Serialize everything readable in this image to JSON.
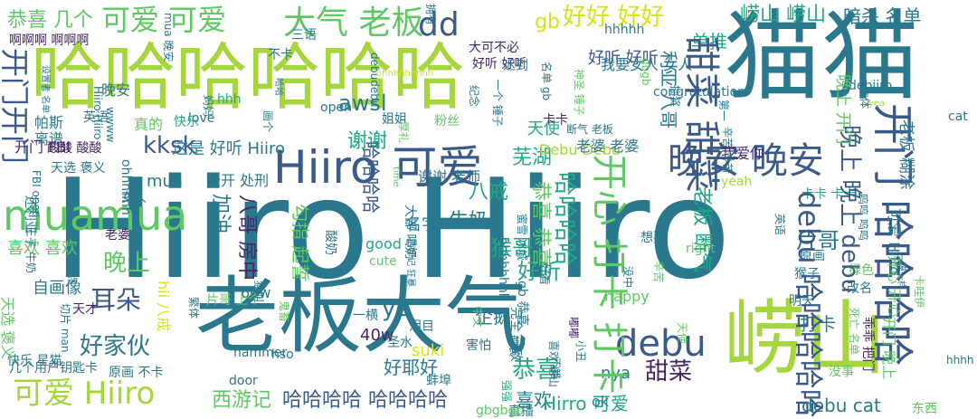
{
  "palette": {
    "dark_purple": "#46256b",
    "blue": "#3b5a8c",
    "teal": "#2a788e",
    "green_teal": "#22a884",
    "green": "#5ec962",
    "lime": "#a5d63b",
    "yellow": "#d8e219"
  },
  "words": [
    {
      "text": "Hiiro Hiiro",
      "color": "teal",
      "orient": "h"
    },
    {
      "text": "猫猫",
      "color": "teal",
      "orient": "h"
    },
    {
      "text": "哈哈哈哈哈哈",
      "color": "lime",
      "orient": "h"
    },
    {
      "text": "老板大气",
      "color": "teal",
      "orient": "h"
    },
    {
      "text": "崂山",
      "color": "lime",
      "orient": "h"
    },
    {
      "text": "Hiiro 可爱",
      "color": "blue",
      "orient": "h"
    },
    {
      "text": "大气 老板",
      "color": "green",
      "orient": "h"
    },
    {
      "text": "可爱 可爱",
      "color": "green",
      "orient": "h"
    },
    {
      "text": "dd",
      "color": "blue",
      "orient": "h"
    },
    {
      "text": "好好 好好",
      "color": "yellow",
      "orient": "h"
    },
    {
      "text": "恭喜 几个",
      "color": "green",
      "orient": "h"
    },
    {
      "text": "晚安 晚安",
      "color": "blue",
      "orient": "h"
    },
    {
      "text": "可爱 Hiiro",
      "color": "lime",
      "orient": "h"
    },
    {
      "text": "哈哈哈哈 哈哈哈哈",
      "color": "blue",
      "orient": "h"
    },
    {
      "text": "debu",
      "color": "blue",
      "orient": "h"
    },
    {
      "text": "好家伙",
      "color": "teal",
      "orient": "h"
    },
    {
      "text": "恭喜",
      "color": "green_teal",
      "orient": "h"
    },
    {
      "text": "崂山 崂山",
      "color": "green_teal",
      "orient": "h"
    },
    {
      "text": "暗杀 名单",
      "color": "teal",
      "orient": "h"
    },
    {
      "text": "单推",
      "color": "green_teal",
      "orient": "h"
    },
    {
      "text": "awsl",
      "color": "teal",
      "orient": "h"
    },
    {
      "text": "gb",
      "color": "yellow",
      "orient": "h"
    },
    {
      "text": "kksk",
      "color": "blue",
      "orient": "h"
    },
    {
      "text": "谢谢",
      "color": "green_teal",
      "orient": "h"
    },
    {
      "text": "芜湖",
      "color": "green_teal",
      "orient": "h"
    },
    {
      "text": "天使",
      "color": "green_teal",
      "orient": "h"
    },
    {
      "text": "好听 好听",
      "color": "blue",
      "orient": "h"
    },
    {
      "text": "mua",
      "color": "teal",
      "orient": "h"
    },
    {
      "text": "晚上",
      "color": "green",
      "orient": "h"
    },
    {
      "text": "耳朵",
      "color": "blue",
      "orient": "h"
    },
    {
      "text": "ye",
      "color": "teal",
      "orient": "h"
    },
    {
      "text": "企鹅",
      "color": "teal",
      "orient": "h"
    },
    {
      "text": "好听",
      "color": "green_teal",
      "orient": "h"
    },
    {
      "text": "猴哥",
      "color": "green_teal",
      "orient": "h"
    },
    {
      "text": "牛奶",
      "color": "teal",
      "orient": "h"
    },
    {
      "text": "甜菜",
      "color": "dark_purple",
      "orient": "h"
    },
    {
      "text": "喜欢",
      "color": "teal",
      "orient": "h"
    },
    {
      "text": "Hirro 可爱",
      "color": "green_teal",
      "orient": "h"
    },
    {
      "text": "西游记",
      "color": "green",
      "orient": "h"
    },
    {
      "text": "debu cat",
      "color": "teal",
      "orient": "h"
    },
    {
      "text": "片哥",
      "color": "teal",
      "orient": "h"
    },
    {
      "text": "打卡",
      "color": "teal",
      "orient": "h"
    },
    {
      "text": "好耶好",
      "color": "teal",
      "orient": "h"
    },
    {
      "text": "八戒",
      "color": "green_teal",
      "orient": "h"
    },
    {
      "text": "名字",
      "color": "teal",
      "orient": "h"
    },
    {
      "text": "这是 好听 Hiiro",
      "color": "teal",
      "orient": "h"
    },
    {
      "text": "我爱你",
      "color": "dark_purple",
      "orient": "h"
    },
    {
      "text": "公开 处刑",
      "color": "teal",
      "orient": "h"
    },
    {
      "text": "谢谢 老师",
      "color": "teal",
      "orient": "h"
    },
    {
      "text": "Debu Debu",
      "color": "lime",
      "orient": "h"
    },
    {
      "text": "老婆 老婆",
      "color": "teal",
      "orient": "h"
    },
    {
      "text": "断气 老板",
      "color": "teal",
      "orient": "h"
    },
    {
      "text": "hhhhh",
      "color": "teal",
      "orient": "h"
    },
    {
      "text": "喜欢 喜欢",
      "color": "green",
      "orient": "h"
    },
    {
      "text": "自画像",
      "color": "teal",
      "orient": "h"
    },
    {
      "text": "60w",
      "color": "teal",
      "orient": "h"
    },
    {
      "text": "40w",
      "color": "dark_purple",
      "orient": "h"
    },
    {
      "text": "happy",
      "color": "green",
      "orient": "h"
    },
    {
      "text": "good",
      "color": "green_teal",
      "orient": "h"
    },
    {
      "text": "cute",
      "color": "green",
      "orient": "h"
    },
    {
      "text": "suki",
      "color": "yellow",
      "orient": "h"
    },
    {
      "text": "nya",
      "color": "teal",
      "orient": "h"
    },
    {
      "text": "ok",
      "color": "teal",
      "orient": "h"
    },
    {
      "text": "hso",
      "color": "teal",
      "orient": "h"
    },
    {
      "text": "yeah",
      "color": "lime",
      "orient": "h"
    },
    {
      "text": "love",
      "color": "teal",
      "orient": "h"
    },
    {
      "text": "open",
      "color": "teal",
      "orient": "h"
    },
    {
      "text": "hhh",
      "color": "green_teal",
      "orient": "h"
    },
    {
      "text": "cat",
      "color": "teal",
      "orient": "h"
    },
    {
      "text": "晚安",
      "color": "teal",
      "orient": "h"
    },
    {
      "text": "我要女人 女人",
      "color": "teal",
      "orient": "h"
    },
    {
      "text": "啊啊啊 啊啊啊",
      "color": "dark_purple",
      "orient": "h"
    },
    {
      "text": "帕斯",
      "color": "teal",
      "orient": "h"
    },
    {
      "text": "离谱",
      "color": "teal",
      "orient": "h"
    },
    {
      "text": "天选 褒义",
      "color": "teal",
      "orient": "h"
    },
    {
      "text": "开门 FBI",
      "color": "dark_purple",
      "orient": "h"
    },
    {
      "text": "真的",
      "color": "green",
      "orient": "h"
    },
    {
      "text": "快乐",
      "color": "green_teal",
      "orient": "h"
    },
    {
      "text": "英语",
      "color": "teal",
      "orient": "h"
    },
    {
      "text": "酸酸 酸酸",
      "color": "dark_purple",
      "orient": "h"
    },
    {
      "text": "好听 好听",
      "color": "dark_purple",
      "orient": "h"
    },
    {
      "text": "大可不必",
      "color": "dark_purple",
      "orient": "h"
    },
    {
      "text": "迟到",
      "color": "teal",
      "orient": "h"
    },
    {
      "text": "姐姐",
      "color": "teal",
      "orient": "h"
    },
    {
      "text": "粉丝",
      "color": "green",
      "orient": "h"
    },
    {
      "text": "卡卡",
      "color": "dark_purple",
      "orient": "h"
    },
    {
      "text": "老婆",
      "color": "dark_purple",
      "orient": "h"
    },
    {
      "text": "女人",
      "color": "teal",
      "orient": "h"
    },
    {
      "text": "天才",
      "color": "dark_purple",
      "orient": "h"
    },
    {
      "text": "快乐 星猫",
      "color": "teal",
      "orient": "h"
    },
    {
      "text": "原画 不卡",
      "color": "teal",
      "orient": "h"
    },
    {
      "text": "片哥 上个",
      "color": "green",
      "orient": "h"
    },
    {
      "text": "泪目",
      "color": "teal",
      "orient": "h"
    },
    {
      "text": "害怕",
      "color": "teal",
      "orient": "h"
    },
    {
      "text": "直播",
      "color": "teal",
      "orient": "h"
    },
    {
      "text": "卡卡 卡卡",
      "color": "green_teal",
      "orient": "h"
    },
    {
      "text": "猴子",
      "color": "teal",
      "orient": "h"
    },
    {
      "text": "原画",
      "color": "teal",
      "orient": "h"
    },
    {
      "text": "想要",
      "color": "teal",
      "orient": "h"
    },
    {
      "text": "明天",
      "color": "teal",
      "orient": "h"
    },
    {
      "text": "改名",
      "color": "teal",
      "orient": "h"
    },
    {
      "text": "debiiro",
      "color": "teal",
      "orient": "h"
    },
    {
      "text": "绿色",
      "color": "green",
      "orient": "h"
    },
    {
      "text": "没事",
      "color": "green",
      "orient": "h"
    },
    {
      "text": "right",
      "color": "green",
      "orient": "h"
    },
    {
      "text": "door",
      "color": "teal",
      "orient": "h"
    },
    {
      "text": "蚌埠",
      "color": "teal",
      "orient": "h"
    },
    {
      "text": "圣水",
      "color": "teal",
      "orient": "h"
    },
    {
      "text": "一横",
      "color": "teal",
      "orient": "h"
    },
    {
      "text": "不卡",
      "color": "teal",
      "orient": "h"
    },
    {
      "text": "三语",
      "color": "teal",
      "orient": "h"
    },
    {
      "text": "东西",
      "color": "green",
      "orient": "h"
    },
    {
      "text": "几个用户钥匙卡",
      "color": "teal",
      "orient": "h"
    },
    {
      "text": "hammer",
      "color": "teal",
      "orient": "h"
    },
    {
      "text": "gbgbgb",
      "color": "green",
      "orient": "h"
    },
    {
      "text": "congratulation",
      "color": "teal",
      "orient": "h"
    },
    {
      "text": "muamua",
      "color": "green",
      "orient": "h"
    },
    {
      "text": "开门开门",
      "color": "blue",
      "orient": "v"
    },
    {
      "text": "甜菜 甜菜",
      "color": "blue",
      "orient": "v"
    },
    {
      "text": "开心 打卡 打卡",
      "color": "green",
      "orient": "v"
    },
    {
      "text": "debu 哈哈哈哈哈",
      "color": "blue",
      "orient": "v"
    },
    {
      "text": "晚上 晚上 debu",
      "color": "blue",
      "orient": "v"
    },
    {
      "text": "开门 哈哈哈哈",
      "color": "blue",
      "orient": "v"
    },
    {
      "text": "哈哈哈哈",
      "color": "blue",
      "orient": "v"
    },
    {
      "text": "加油",
      "color": "teal",
      "orient": "v"
    },
    {
      "text": "勾指 起誓",
      "color": "green",
      "orient": "v"
    },
    {
      "text": "八哥 房中",
      "color": "dark_purple",
      "orient": "v"
    },
    {
      "text": "恭喜 恭喜",
      "color": "green",
      "orient": "v"
    },
    {
      "text": "哈哈哈哈",
      "color": "green_teal",
      "orient": "v"
    },
    {
      "text": "老板 断气",
      "color": "green_teal",
      "orient": "v"
    },
    {
      "text": "利亚 八哥",
      "color": "teal",
      "orient": "v"
    },
    {
      "text": "hii 八戒",
      "color": "yellow",
      "orient": "v"
    },
    {
      "text": "天选 褒义",
      "color": "green",
      "orient": "v"
    },
    {
      "text": "晚上 开门",
      "color": "green",
      "orient": "v"
    },
    {
      "text": "老板 糊涂",
      "color": "teal",
      "orient": "v"
    },
    {
      "text": "可爱 Hiiro",
      "color": "teal",
      "orient": "v"
    },
    {
      "text": "开门 晚上",
      "color": "green",
      "orient": "v"
    },
    {
      "text": "乖乖 把门",
      "color": "dark_purple",
      "orient": "v"
    },
    {
      "text": "开心 开心",
      "color": "green",
      "orient": "v"
    },
    {
      "text": "还利亚",
      "color": "teal",
      "orient": "v"
    },
    {
      "text": "酸奶",
      "color": "teal",
      "orient": "v"
    },
    {
      "text": "FBI open",
      "color": "teal",
      "orient": "v"
    },
    {
      "text": "大部 喝奶",
      "color": "teal",
      "orient": "v"
    },
    {
      "text": "ohhhhhhh",
      "color": "teal",
      "orient": "v"
    },
    {
      "text": "蜜雪 冰城",
      "color": "teal",
      "orient": "v"
    },
    {
      "text": "gb 恭喜",
      "color": "teal",
      "orient": "v"
    },
    {
      "text": "完全 一致",
      "color": "teal",
      "orient": "v"
    },
    {
      "text": "一个 锤子",
      "color": "teal",
      "orient": "v"
    },
    {
      "text": "ohhhhhh",
      "color": "teal",
      "orient": "v"
    },
    {
      "text": "Hiiro Hiiro",
      "color": "teal",
      "orient": "v"
    },
    {
      "text": "debudebu",
      "color": "teal",
      "orient": "v"
    },
    {
      "text": "王子 牛奶",
      "color": "teal",
      "orient": "v"
    },
    {
      "text": "名单 gb",
      "color": "teal",
      "orient": "v"
    },
    {
      "text": "gbgb",
      "color": "green",
      "orient": "v"
    },
    {
      "text": "神圣 锤子",
      "color": "green",
      "orient": "v"
    },
    {
      "text": "辛苦 辛苦",
      "color": "teal",
      "orient": "v"
    },
    {
      "text": "呜呜 呜呜",
      "color": "teal",
      "orient": "v"
    },
    {
      "text": "抽奖",
      "color": "teal",
      "orient": "v"
    },
    {
      "text": "厚礼",
      "color": "green",
      "orient": "v"
    },
    {
      "text": "本体",
      "color": "teal",
      "orient": "v"
    },
    {
      "text": "第一",
      "color": "teal",
      "orient": "v"
    },
    {
      "text": "没中",
      "color": "teal",
      "orient": "v"
    },
    {
      "text": "辛苦",
      "color": "green",
      "orient": "v"
    },
    {
      "text": "纪念",
      "color": "teal",
      "orient": "v"
    },
    {
      "text": "妈妈",
      "color": "teal",
      "orient": "v"
    },
    {
      "text": "一模一样",
      "color": "teal",
      "orient": "v"
    },
    {
      "text": "喜欢 崂山",
      "color": "teal",
      "orient": "v"
    },
    {
      "text": "中文",
      "color": "green",
      "orient": "v"
    },
    {
      "text": "卡哇伊",
      "color": "green",
      "orient": "v"
    },
    {
      "text": "死亡 名单",
      "color": "green",
      "orient": "v"
    },
    {
      "text": "好看",
      "color": "teal",
      "orient": "v"
    },
    {
      "text": "猫叫",
      "color": "teal",
      "orient": "v"
    },
    {
      "text": "八点",
      "color": "teal",
      "orient": "v"
    },
    {
      "text": "繁体",
      "color": "teal",
      "orient": "v"
    },
    {
      "text": "鬼畜",
      "color": "green",
      "orient": "v"
    },
    {
      "text": "time",
      "color": "green",
      "orient": "v"
    },
    {
      "text": "wwww",
      "color": "teal",
      "orient": "v"
    },
    {
      "text": "英语",
      "color": "teal",
      "orient": "v"
    },
    {
      "text": "舰长",
      "color": "teal",
      "orient": "v"
    },
    {
      "text": "天使",
      "color": "green",
      "orient": "v"
    },
    {
      "text": "切片 man",
      "color": "teal",
      "orient": "v"
    },
    {
      "text": "嘟嘟",
      "color": "dark_purple",
      "orient": "v"
    },
    {
      "text": "小丑",
      "color": "teal",
      "orient": "v"
    },
    {
      "text": "不错",
      "color": "teal",
      "orient": "v"
    },
    {
      "text": "强强",
      "color": "green_teal",
      "orient": "v"
    },
    {
      "text": "画个",
      "color": "teal",
      "orient": "v"
    },
    {
      "text": "拥有",
      "color": "teal",
      "orient": "v"
    },
    {
      "text": "ohhhhhhhhh",
      "color": "yellow",
      "orient": "h"
    },
    {
      "text": "西部记 狂暴",
      "color": "teal",
      "orient": "v"
    },
    {
      "text": "设置者 名单",
      "color": "teal",
      "orient": "v"
    },
    {
      "text": "mua 晚安",
      "color": "teal",
      "orient": "v"
    },
    {
      "text": "hhhh",
      "color": "teal",
      "orient": "h"
    },
    {
      "text": "yea",
      "color": "lime",
      "orient": "h"
    },
    {
      "text": "哈哈",
      "color": "teal",
      "orient": "v"
    },
    {
      "text": "嘴嘴",
      "color": "teal",
      "orient": "v"
    }
  ]
}
